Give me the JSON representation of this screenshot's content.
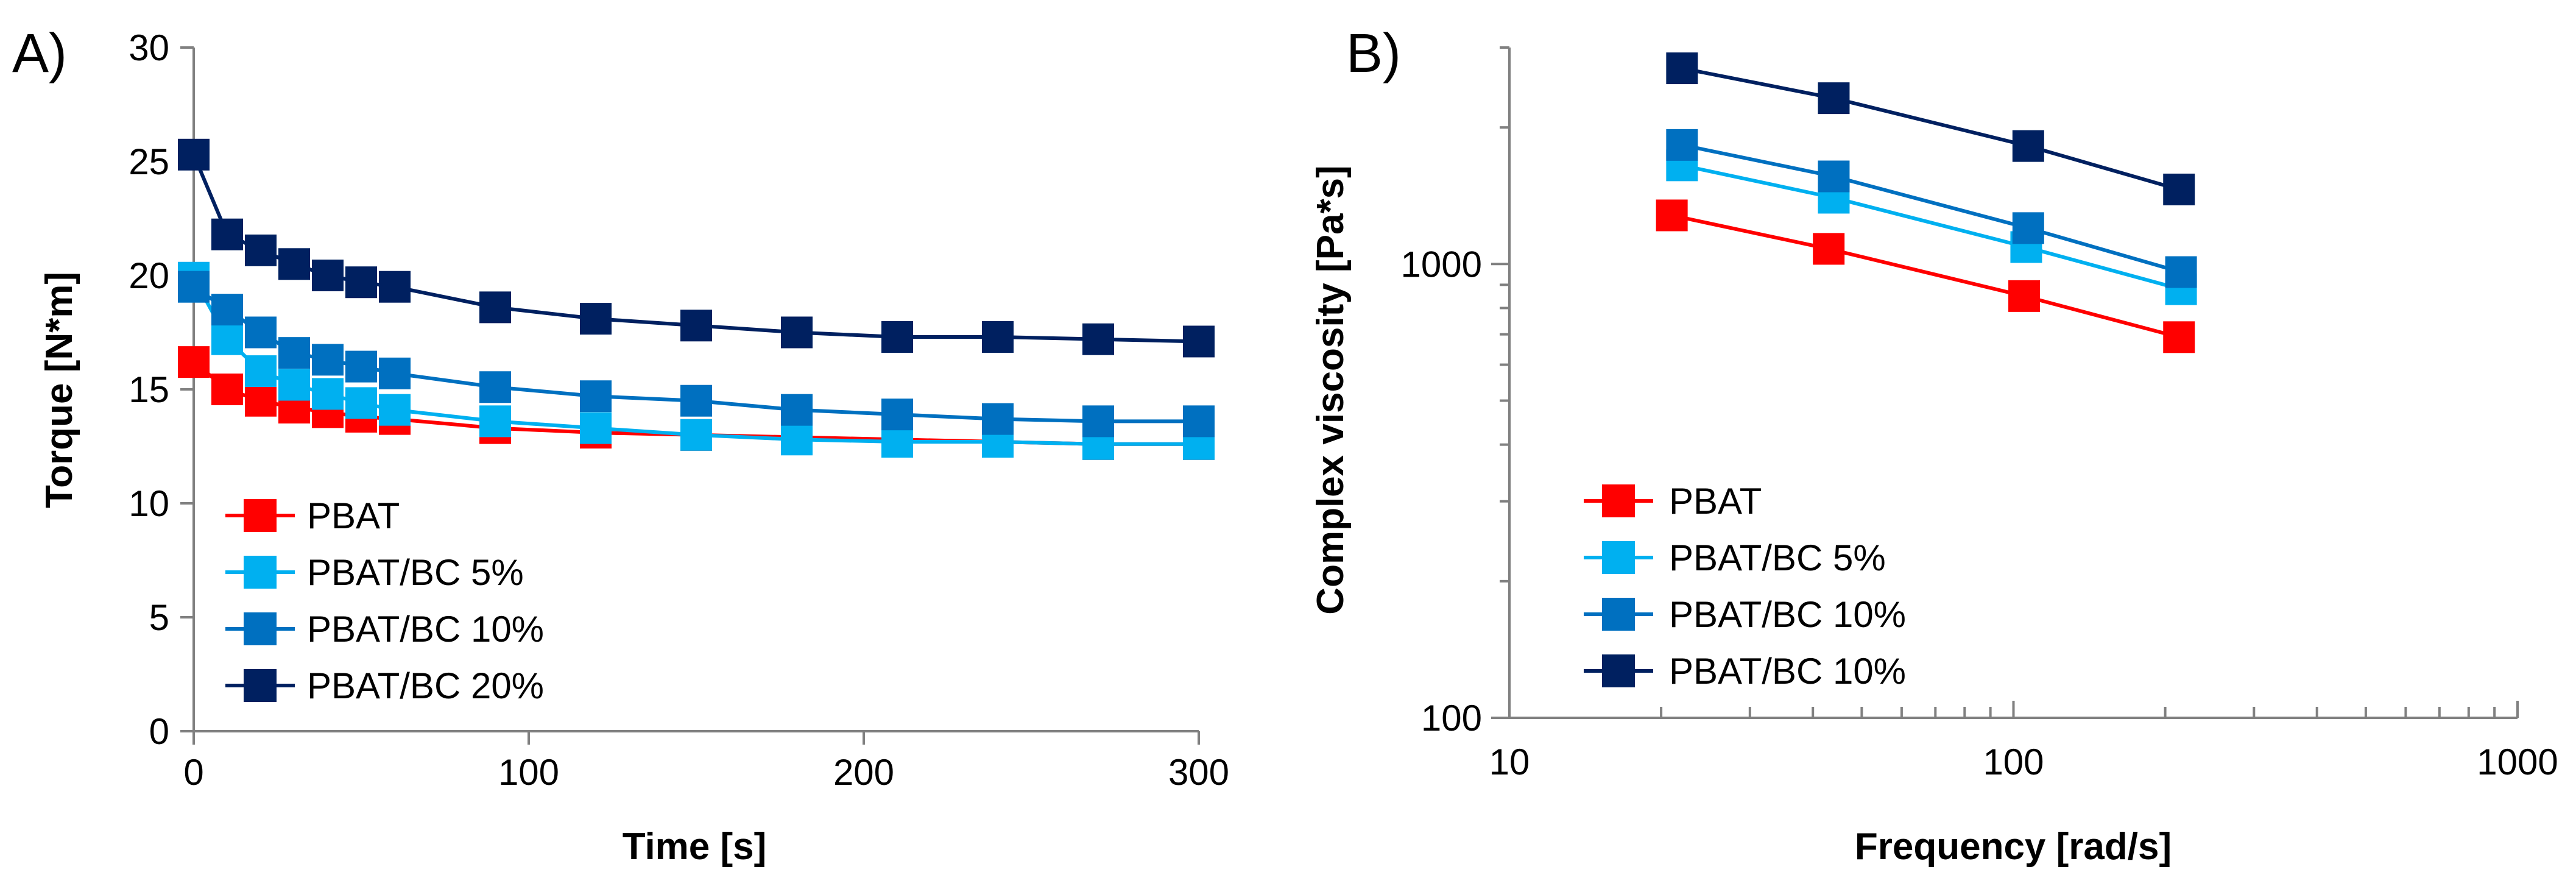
{
  "chart_data": [
    {
      "panel": "A)",
      "type": "line",
      "xlabel": "Time [s]",
      "ylabel": "Torque [N*m]",
      "xlim": [
        0,
        300
      ],
      "ylim": [
        0,
        30
      ],
      "xticks": [
        0,
        100,
        200,
        300
      ],
      "yticks": [
        0,
        5,
        10,
        15,
        20,
        25,
        30
      ],
      "grid": false,
      "legend_position": "bottom-left",
      "x": [
        0,
        10,
        20,
        30,
        40,
        50,
        60,
        90,
        120,
        150,
        180,
        210,
        240,
        270,
        300
      ],
      "series": [
        {
          "name": "PBAT",
          "color": "#ff0000",
          "values": [
            16.2,
            15.0,
            14.5,
            14.2,
            14.0,
            13.8,
            13.7,
            13.3,
            13.1,
            13.0,
            12.9,
            12.8,
            12.7,
            12.6,
            12.6
          ]
        },
        {
          "name": "PBAT/BC 5%",
          "color": "#00b0f0",
          "values": [
            19.9,
            17.2,
            15.8,
            15.2,
            14.8,
            14.4,
            14.1,
            13.6,
            13.3,
            13.0,
            12.8,
            12.7,
            12.7,
            12.6,
            12.6
          ]
        },
        {
          "name": "PBAT/BC 10%",
          "color": "#0070c0",
          "values": [
            19.5,
            18.5,
            17.5,
            16.6,
            16.3,
            16.0,
            15.7,
            15.1,
            14.7,
            14.5,
            14.1,
            13.9,
            13.7,
            13.6,
            13.6
          ]
        },
        {
          "name": "PBAT/BC 20%",
          "color": "#002060",
          "values": [
            25.3,
            21.8,
            21.1,
            20.5,
            20.0,
            19.7,
            19.5,
            18.6,
            18.1,
            17.8,
            17.5,
            17.3,
            17.3,
            17.2,
            17.1
          ]
        }
      ]
    },
    {
      "panel": "B)",
      "type": "line",
      "xlabel": "Frequency [rad/s]",
      "ylabel": "Complex viscosity  [Pa*s]",
      "xscale": "log",
      "yscale": "log",
      "xlim": [
        10,
        1000
      ],
      "ylim": [
        100,
        3000
      ],
      "xticks": [
        10,
        100,
        1000
      ],
      "yticks": [
        100,
        1000
      ],
      "grid": false,
      "legend_position": "bottom-left",
      "series": [
        {
          "name": "PBAT",
          "color": "#ff0000",
          "x": [
            21,
            43,
            105,
            213
          ],
          "values": [
            1280,
            1080,
            850,
            690
          ]
        },
        {
          "name": "PBAT/BC 5%",
          "color": "#00b0f0",
          "x": [
            22,
            44,
            106,
            215
          ],
          "values": [
            1650,
            1400,
            1090,
            880
          ]
        },
        {
          "name": "PBAT/BC 10%",
          "color": "#0070c0",
          "x": [
            22,
            44,
            107,
            215
          ],
          "values": [
            1830,
            1560,
            1200,
            960
          ]
        },
        {
          "name": "PBAT/BC 10%",
          "color": "#002060",
          "x": [
            22,
            44,
            107,
            213
          ],
          "values": [
            2700,
            2320,
            1820,
            1460
          ]
        }
      ]
    }
  ]
}
